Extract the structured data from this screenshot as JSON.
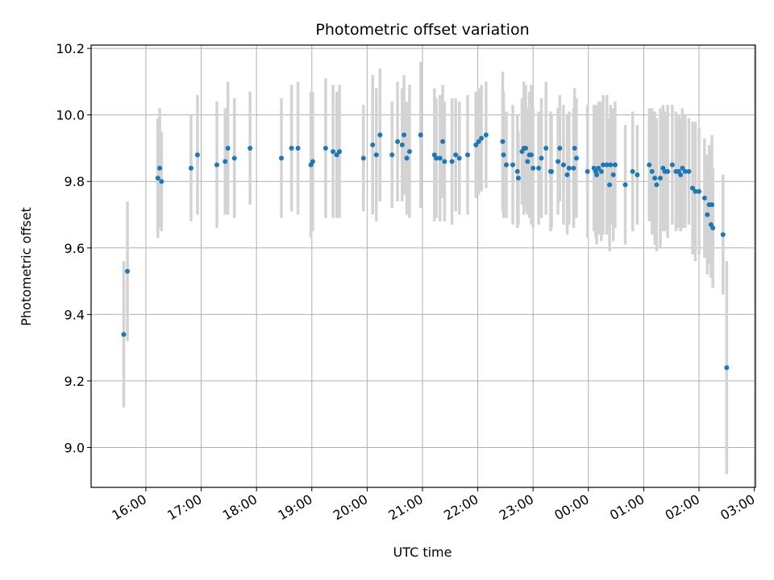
{
  "chart_data": {
    "type": "scatter",
    "title": "Photometric offset variation",
    "xlabel": "UTC time",
    "ylabel": "Photometric offset",
    "x_ticks": [
      "16:00",
      "17:00",
      "18:00",
      "19:00",
      "20:00",
      "21:00",
      "22:00",
      "23:00",
      "00:00",
      "01:00",
      "02:00",
      "03:00"
    ],
    "y_ticks": [
      "9.0",
      "9.2",
      "9.4",
      "9.6",
      "9.8",
      "10.0",
      "10.2"
    ],
    "xlim": [
      "15:00",
      "03:00"
    ],
    "xlim_hours": [
      15.01,
      27.02
    ],
    "ylim": [
      8.88,
      10.21
    ],
    "grid": true,
    "colors": {
      "point": "#1f77b4",
      "errorbar": "#d3d3d3",
      "grid": "#b0b0b0"
    },
    "points": [
      {
        "x": "15:36",
        "y": 9.34,
        "err": 0.22
      },
      {
        "x": "15:40",
        "y": 9.53,
        "err": 0.21
      },
      {
        "x": "16:13",
        "y": 9.81,
        "err": 0.18
      },
      {
        "x": "16:15",
        "y": 9.84,
        "err": 0.18
      },
      {
        "x": "16:17",
        "y": 9.8,
        "err": 0.15
      },
      {
        "x": "16:49",
        "y": 9.84,
        "err": 0.16
      },
      {
        "x": "16:56",
        "y": 9.88,
        "err": 0.18
      },
      {
        "x": "17:17",
        "y": 9.85,
        "err": 0.19
      },
      {
        "x": "17:26",
        "y": 9.86,
        "err": 0.16
      },
      {
        "x": "17:29",
        "y": 9.9,
        "err": 0.2
      },
      {
        "x": "17:36",
        "y": 9.87,
        "err": 0.18
      },
      {
        "x": "17:53",
        "y": 9.9,
        "err": 0.17
      },
      {
        "x": "18:27",
        "y": 9.87,
        "err": 0.18
      },
      {
        "x": "18:38",
        "y": 9.9,
        "err": 0.19
      },
      {
        "x": "18:45",
        "y": 9.9,
        "err": 0.2
      },
      {
        "x": "18:59",
        "y": 9.85,
        "err": 0.22
      },
      {
        "x": "19:01",
        "y": 9.86,
        "err": 0.21
      },
      {
        "x": "19:15",
        "y": 9.9,
        "err": 0.21
      },
      {
        "x": "19:23",
        "y": 9.89,
        "err": 0.2
      },
      {
        "x": "19:27",
        "y": 9.88,
        "err": 0.19
      },
      {
        "x": "19:30",
        "y": 9.89,
        "err": 0.2
      },
      {
        "x": "19:56",
        "y": 9.87,
        "err": 0.16
      },
      {
        "x": "20:06",
        "y": 9.91,
        "err": 0.21
      },
      {
        "x": "20:10",
        "y": 9.88,
        "err": 0.2
      },
      {
        "x": "20:14",
        "y": 9.94,
        "err": 0.2
      },
      {
        "x": "20:27",
        "y": 9.88,
        "err": 0.16
      },
      {
        "x": "20:33",
        "y": 9.92,
        "err": 0.18
      },
      {
        "x": "20:38",
        "y": 9.91,
        "err": 0.17
      },
      {
        "x": "20:40",
        "y": 9.94,
        "err": 0.18
      },
      {
        "x": "20:43",
        "y": 9.87,
        "err": 0.17
      },
      {
        "x": "20:46",
        "y": 9.89,
        "err": 0.2
      },
      {
        "x": "20:58",
        "y": 9.94,
        "err": 0.22
      },
      {
        "x": "21:13",
        "y": 9.88,
        "err": 0.2
      },
      {
        "x": "21:15",
        "y": 9.87,
        "err": 0.18
      },
      {
        "x": "21:19",
        "y": 9.87,
        "err": 0.19
      },
      {
        "x": "21:22",
        "y": 9.92,
        "err": 0.17
      },
      {
        "x": "21:24",
        "y": 9.86,
        "err": 0.18
      },
      {
        "x": "21:32",
        "y": 9.86,
        "err": 0.19
      },
      {
        "x": "21:36",
        "y": 9.88,
        "err": 0.17
      },
      {
        "x": "21:40",
        "y": 9.87,
        "err": 0.17
      },
      {
        "x": "21:49",
        "y": 9.88,
        "err": 0.18
      },
      {
        "x": "21:58",
        "y": 9.91,
        "err": 0.16
      },
      {
        "x": "22:01",
        "y": 9.92,
        "err": 0.16
      },
      {
        "x": "22:04",
        "y": 9.93,
        "err": 0.16
      },
      {
        "x": "22:09",
        "y": 9.94,
        "err": 0.16
      },
      {
        "x": "22:27",
        "y": 9.92,
        "err": 0.21
      },
      {
        "x": "22:28",
        "y": 9.88,
        "err": 0.19
      },
      {
        "x": "22:31",
        "y": 9.85,
        "err": 0.16
      },
      {
        "x": "22:38",
        "y": 9.85,
        "err": 0.18
      },
      {
        "x": "22:43",
        "y": 9.83,
        "err": 0.17
      },
      {
        "x": "22:44",
        "y": 9.81,
        "err": 0.14
      },
      {
        "x": "22:48",
        "y": 9.89,
        "err": 0.16
      },
      {
        "x": "22:50",
        "y": 9.9,
        "err": 0.2
      },
      {
        "x": "22:52",
        "y": 9.9,
        "err": 0.19
      },
      {
        "x": "22:54",
        "y": 9.86,
        "err": 0.16
      },
      {
        "x": "22:56",
        "y": 9.88,
        "err": 0.19
      },
      {
        "x": "22:58",
        "y": 9.88,
        "err": 0.21
      },
      {
        "x": "23:00",
        "y": 9.84,
        "err": 0.18
      },
      {
        "x": "23:06",
        "y": 9.84,
        "err": 0.17
      },
      {
        "x": "23:09",
        "y": 9.87,
        "err": 0.18
      },
      {
        "x": "23:14",
        "y": 9.9,
        "err": 0.2
      },
      {
        "x": "23:19",
        "y": 9.83,
        "err": 0.18
      },
      {
        "x": "23:20",
        "y": 9.83,
        "err": 0.17
      },
      {
        "x": "23:27",
        "y": 9.86,
        "err": 0.16
      },
      {
        "x": "23:29",
        "y": 9.9,
        "err": 0.16
      },
      {
        "x": "23:33",
        "y": 9.85,
        "err": 0.18
      },
      {
        "x": "23:37",
        "y": 9.82,
        "err": 0.18
      },
      {
        "x": "23:39",
        "y": 9.84,
        "err": 0.17
      },
      {
        "x": "23:44",
        "y": 9.84,
        "err": 0.18
      },
      {
        "x": "23:45",
        "y": 9.9,
        "err": 0.18
      },
      {
        "x": "23:47",
        "y": 9.87,
        "err": 0.18
      },
      {
        "x": "23:59",
        "y": 9.83,
        "err": 0.2
      },
      {
        "x": "00:06",
        "y": 9.84,
        "err": 0.19
      },
      {
        "x": "00:08",
        "y": 9.83,
        "err": 0.2
      },
      {
        "x": "00:09",
        "y": 9.82,
        "err": 0.21
      },
      {
        "x": "00:11",
        "y": 9.84,
        "err": 0.2
      },
      {
        "x": "00:14",
        "y": 9.83,
        "err": 0.21
      },
      {
        "x": "00:16",
        "y": 9.85,
        "err": 0.21
      },
      {
        "x": "00:20",
        "y": 9.85,
        "err": 0.21
      },
      {
        "x": "00:23",
        "y": 9.79,
        "err": 0.2
      },
      {
        "x": "00:24",
        "y": 9.85,
        "err": 0.18
      },
      {
        "x": "00:27",
        "y": 9.82,
        "err": 0.2
      },
      {
        "x": "00:29",
        "y": 9.85,
        "err": 0.19
      },
      {
        "x": "00:40",
        "y": 9.79,
        "err": 0.18
      },
      {
        "x": "00:48",
        "y": 9.83,
        "err": 0.18
      },
      {
        "x": "00:53",
        "y": 9.82,
        "err": 0.15
      },
      {
        "x": "01:06",
        "y": 9.85,
        "err": 0.17
      },
      {
        "x": "01:09",
        "y": 9.83,
        "err": 0.19
      },
      {
        "x": "01:12",
        "y": 9.81,
        "err": 0.2
      },
      {
        "x": "01:14",
        "y": 9.79,
        "err": 0.2
      },
      {
        "x": "01:18",
        "y": 9.81,
        "err": 0.21
      },
      {
        "x": "01:21",
        "y": 9.84,
        "err": 0.19
      },
      {
        "x": "01:23",
        "y": 9.83,
        "err": 0.18
      },
      {
        "x": "01:26",
        "y": 9.83,
        "err": 0.2
      },
      {
        "x": "01:31",
        "y": 9.85,
        "err": 0.18
      },
      {
        "x": "01:35",
        "y": 9.83,
        "err": 0.18
      },
      {
        "x": "01:38",
        "y": 9.83,
        "err": 0.17
      },
      {
        "x": "01:40",
        "y": 9.82,
        "err": 0.17
      },
      {
        "x": "01:42",
        "y": 9.84,
        "err": 0.18
      },
      {
        "x": "01:45",
        "y": 9.83,
        "err": 0.17
      },
      {
        "x": "01:49",
        "y": 9.83,
        "err": 0.16
      },
      {
        "x": "01:53",
        "y": 9.78,
        "err": 0.2
      },
      {
        "x": "01:56",
        "y": 9.77,
        "err": 0.21
      },
      {
        "x": "02:00",
        "y": 9.77,
        "err": 0.19
      },
      {
        "x": "02:06",
        "y": 9.75,
        "err": 0.18
      },
      {
        "x": "02:09",
        "y": 9.7,
        "err": 0.18
      },
      {
        "x": "02:11",
        "y": 9.73,
        "err": 0.18
      },
      {
        "x": "02:13",
        "y": 9.67,
        "err": 0.16
      },
      {
        "x": "02:14",
        "y": 9.73,
        "err": 0.21
      },
      {
        "x": "02:15",
        "y": 9.66,
        "err": 0.18
      },
      {
        "x": "02:26",
        "y": 9.64,
        "err": 0.18
      },
      {
        "x": "02:30",
        "y": 9.24,
        "err": 0.32
      }
    ]
  }
}
